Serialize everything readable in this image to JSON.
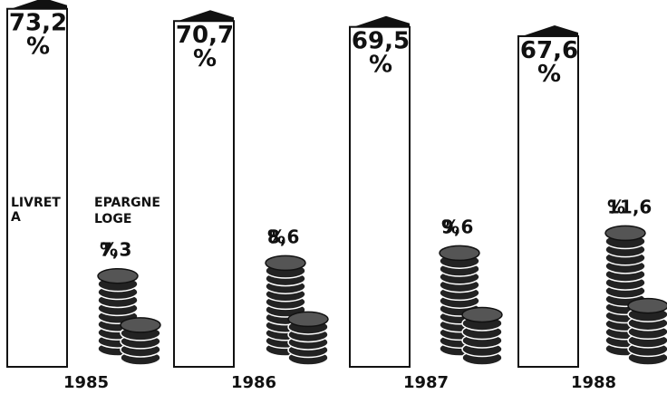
{
  "chart_data": {
    "type": "booklet-coins",
    "categories": [
      "1985",
      "1986",
      "1987",
      "1988"
    ],
    "series": [
      {
        "name": "LIVRET A",
        "color": "#ffffff",
        "values": [
          73.2,
          70.7,
          69.5,
          67.6
        ],
        "value_labels": [
          "73,2 %",
          "70,7 %",
          "69,5 %",
          "67,6 %"
        ]
      },
      {
        "name": "EPARGNE LOGE",
        "color": "#222222",
        "values": [
          7.3,
          8.6,
          9.6,
          11.6
        ],
        "value_labels": [
          "7,3 %",
          "8,6 %",
          "9,6 %",
          "11,6 %"
        ]
      }
    ]
  }
}
